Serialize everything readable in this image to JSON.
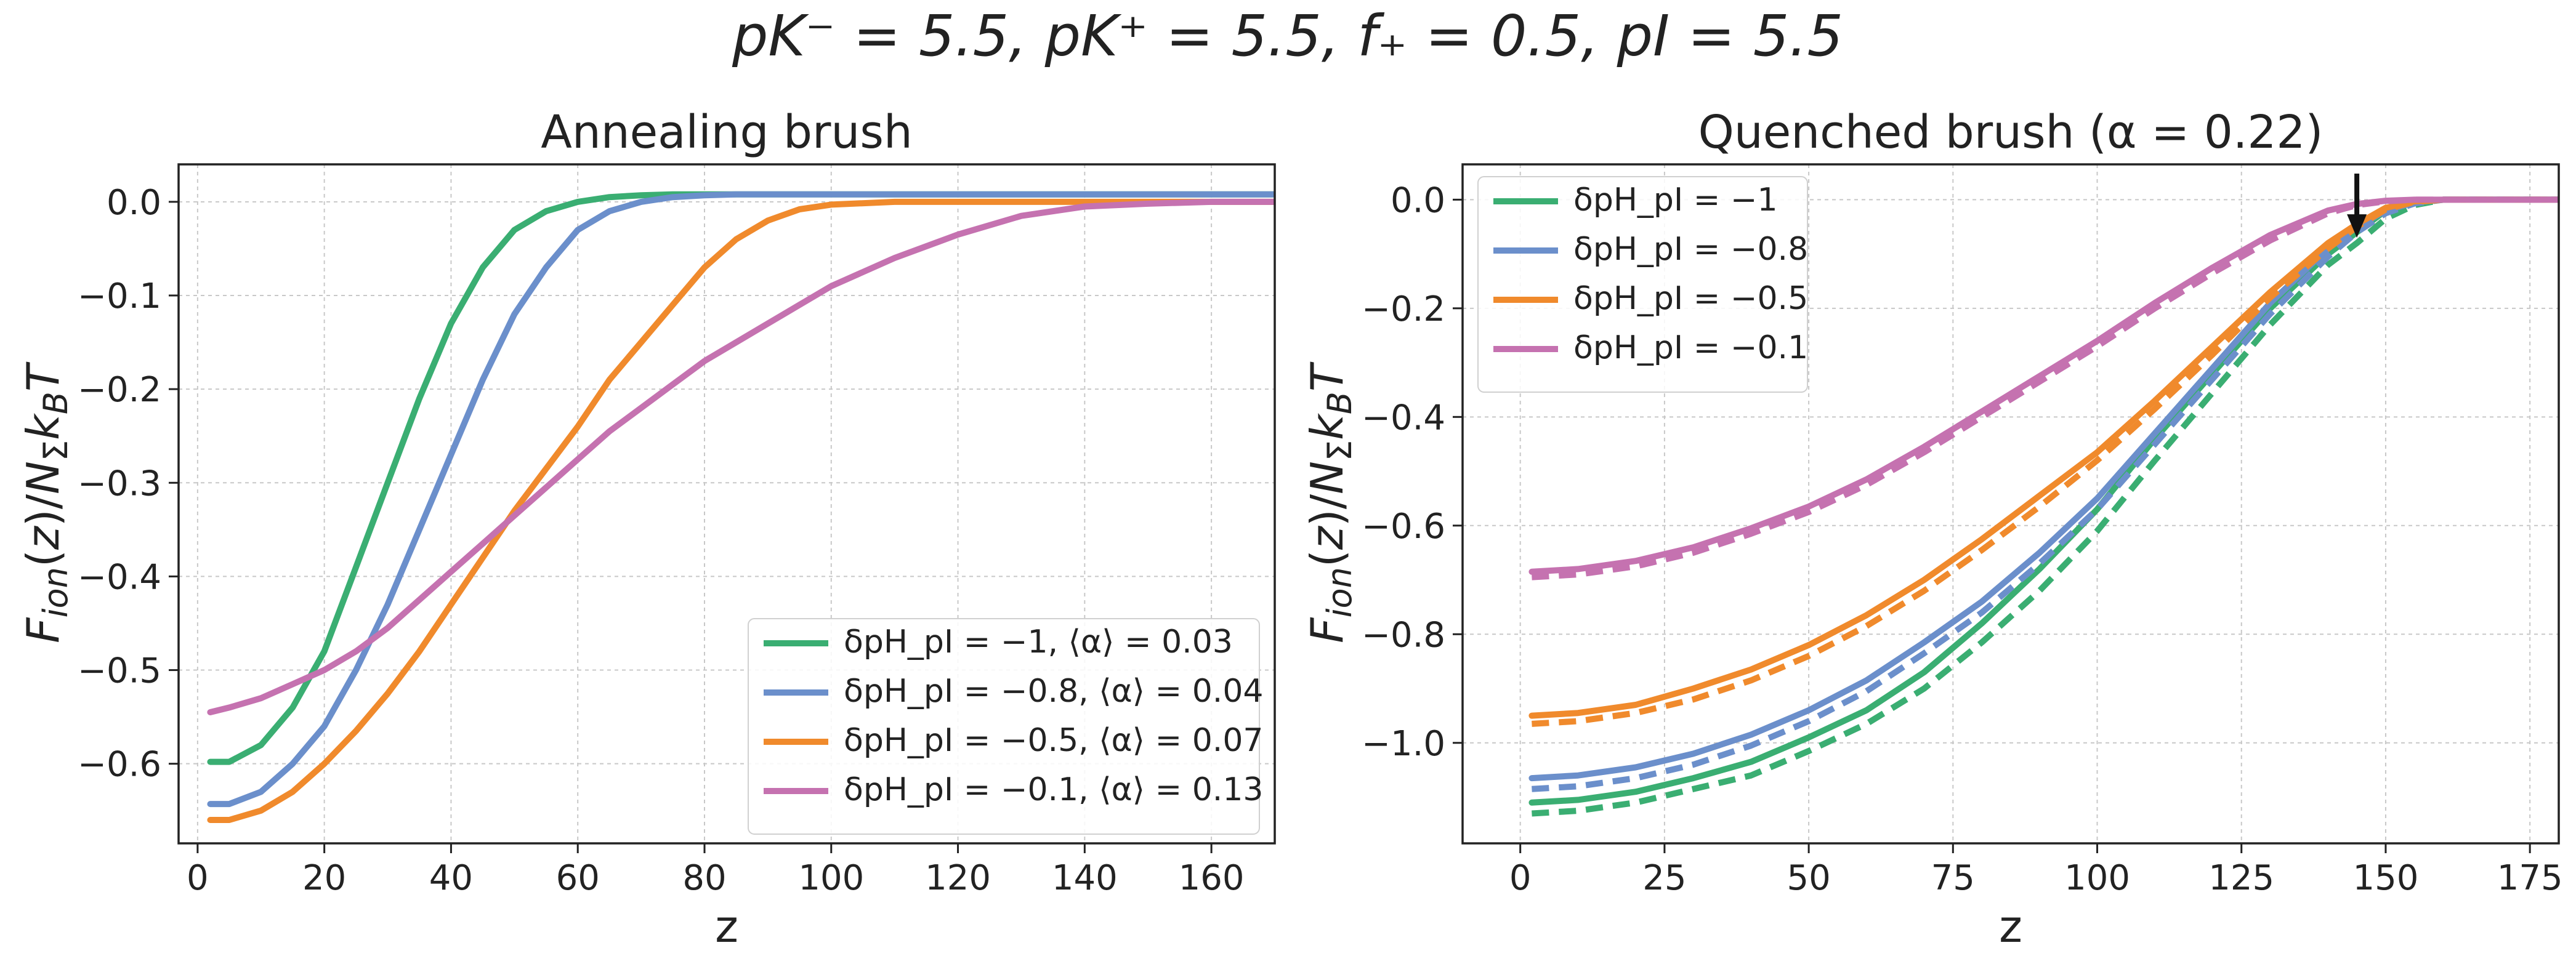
{
  "figure_title": "pK⁻ = 5.5, pK⁺ = 5.5, f₊ = 0.5, pI = 5.5",
  "chart_data": [
    {
      "type": "line",
      "title": "Annealing brush",
      "xlabel": "z",
      "ylabel": "F_ion(z)/N_Σ k_B T",
      "xlim": [
        -3,
        170
      ],
      "ylim": [
        -0.685,
        0.04
      ],
      "xticks": [
        0,
        20,
        40,
        60,
        80,
        100,
        120,
        140,
        160
      ],
      "yticks": [
        0.0,
        -0.1,
        -0.2,
        -0.3,
        -0.4,
        -0.5,
        -0.6
      ],
      "grid": true,
      "legend_position": "lower-right",
      "x": [
        2,
        5,
        10,
        15,
        20,
        25,
        30,
        35,
        40,
        45,
        50,
        55,
        60,
        65,
        70,
        75,
        80,
        85,
        90,
        95,
        100,
        110,
        120,
        130,
        140,
        150,
        160,
        170
      ],
      "series": [
        {
          "name": "δpH_pI = −1, ⟨α⟩ = 0.03",
          "color": "#3aae72",
          "style": "solid",
          "values": [
            -0.598,
            -0.598,
            -0.58,
            -0.54,
            -0.48,
            -0.39,
            -0.3,
            -0.21,
            -0.13,
            -0.07,
            -0.03,
            -0.01,
            0.0,
            0.005,
            0.007,
            0.008,
            0.008,
            0.008,
            0.008,
            0.008,
            0.008,
            0.008,
            0.008,
            0.008,
            0.008,
            0.008,
            0.008,
            0.008
          ]
        },
        {
          "name": "δpH_pI = −0.8, ⟨α⟩ = 0.04",
          "color": "#6b8fcb",
          "style": "solid",
          "values": [
            -0.643,
            -0.643,
            -0.63,
            -0.6,
            -0.56,
            -0.5,
            -0.43,
            -0.35,
            -0.27,
            -0.19,
            -0.12,
            -0.07,
            -0.03,
            -0.01,
            0.0,
            0.005,
            0.007,
            0.008,
            0.008,
            0.008,
            0.008,
            0.008,
            0.008,
            0.008,
            0.008,
            0.008,
            0.008,
            0.008
          ]
        },
        {
          "name": "δpH_pI = −0.5, ⟨α⟩ = 0.07",
          "color": "#f08a2c",
          "style": "solid",
          "values": [
            -0.66,
            -0.66,
            -0.65,
            -0.63,
            -0.6,
            -0.565,
            -0.525,
            -0.48,
            -0.43,
            -0.38,
            -0.33,
            -0.285,
            -0.24,
            -0.19,
            -0.15,
            -0.11,
            -0.07,
            -0.04,
            -0.02,
            -0.008,
            -0.003,
            0.0,
            0.0,
            0.0,
            0.0,
            0.0,
            0.0,
            0.0
          ]
        },
        {
          "name": "δpH_pI = −0.1, ⟨α⟩ = 0.13",
          "color": "#c572b0",
          "style": "solid",
          "values": [
            -0.545,
            -0.54,
            -0.53,
            -0.515,
            -0.5,
            -0.48,
            -0.455,
            -0.425,
            -0.395,
            -0.365,
            -0.335,
            -0.305,
            -0.275,
            -0.245,
            -0.22,
            -0.195,
            -0.17,
            -0.15,
            -0.13,
            -0.11,
            -0.09,
            -0.06,
            -0.035,
            -0.015,
            -0.005,
            -0.002,
            0.0,
            0.0
          ]
        }
      ]
    },
    {
      "type": "line",
      "title": "Quenched brush (α = 0.22)",
      "xlabel": "z",
      "ylabel": "F_ion(z)/N_Σ k_B T",
      "xlim": [
        -10,
        180
      ],
      "ylim": [
        -1.185,
        0.065
      ],
      "xticks": [
        0,
        25,
        50,
        75,
        100,
        125,
        150,
        175
      ],
      "yticks": [
        0.0,
        -0.2,
        -0.4,
        -0.6,
        -0.8,
        -1.0
      ],
      "grid": true,
      "legend_position": "upper-left",
      "note": "solid and dashed curves per condition; arrow marks z ≈ 145",
      "arrow_x": 145,
      "x": [
        2,
        10,
        20,
        30,
        40,
        50,
        60,
        70,
        80,
        90,
        100,
        110,
        120,
        130,
        140,
        145,
        150,
        155,
        160,
        165,
        170,
        180
      ],
      "series": [
        {
          "name": "δpH_pI = −1",
          "color": "#3aae72",
          "style": "solid",
          "values": [
            -1.11,
            -1.105,
            -1.09,
            -1.065,
            -1.035,
            -0.99,
            -0.94,
            -0.87,
            -0.78,
            -0.68,
            -0.57,
            -0.44,
            -0.32,
            -0.2,
            -0.1,
            -0.06,
            -0.02,
            -0.005,
            0.0,
            0.0,
            0.0,
            0.0
          ]
        },
        {
          "name": "δpH_pI = −1 (dashed)",
          "color": "#3aae72",
          "style": "dashed",
          "values": [
            -1.13,
            -1.125,
            -1.11,
            -1.085,
            -1.06,
            -1.015,
            -0.965,
            -0.9,
            -0.815,
            -0.72,
            -0.61,
            -0.48,
            -0.355,
            -0.23,
            -0.12,
            -0.08,
            -0.035,
            -0.01,
            0.0,
            0.0,
            0.0,
            0.0
          ]
        },
        {
          "name": "δpH_pI = −0.8",
          "color": "#6b8fcb",
          "style": "solid",
          "values": [
            -1.065,
            -1.06,
            -1.045,
            -1.02,
            -0.985,
            -0.94,
            -0.885,
            -0.815,
            -0.74,
            -0.65,
            -0.55,
            -0.43,
            -0.31,
            -0.19,
            -0.09,
            -0.05,
            -0.02,
            -0.005,
            0.0,
            0.0,
            0.0,
            0.0
          ]
        },
        {
          "name": "δpH_pI = −0.8 (dashed)",
          "color": "#6b8fcb",
          "style": "dashed",
          "values": [
            -1.085,
            -1.08,
            -1.065,
            -1.04,
            -1.005,
            -0.96,
            -0.905,
            -0.835,
            -0.76,
            -0.67,
            -0.57,
            -0.45,
            -0.33,
            -0.21,
            -0.105,
            -0.06,
            -0.025,
            -0.007,
            0.0,
            0.0,
            0.0,
            0.0
          ]
        },
        {
          "name": "δpH_pI = −0.5",
          "color": "#f08a2c",
          "style": "solid",
          "values": [
            -0.95,
            -0.945,
            -0.93,
            -0.9,
            -0.865,
            -0.82,
            -0.765,
            -0.7,
            -0.625,
            -0.545,
            -0.465,
            -0.37,
            -0.27,
            -0.17,
            -0.08,
            -0.045,
            -0.015,
            -0.003,
            0.0,
            0.0,
            0.0,
            0.0
          ]
        },
        {
          "name": "δpH_pI = −0.5 (dashed)",
          "color": "#f08a2c",
          "style": "dashed",
          "values": [
            -0.965,
            -0.96,
            -0.945,
            -0.92,
            -0.885,
            -0.84,
            -0.785,
            -0.72,
            -0.645,
            -0.565,
            -0.48,
            -0.385,
            -0.285,
            -0.18,
            -0.09,
            -0.05,
            -0.018,
            -0.004,
            0.0,
            0.0,
            0.0,
            0.0
          ]
        },
        {
          "name": "δpH_pI = −0.1",
          "color": "#c572b0",
          "style": "solid",
          "values": [
            -0.685,
            -0.68,
            -0.665,
            -0.64,
            -0.605,
            -0.565,
            -0.515,
            -0.455,
            -0.39,
            -0.325,
            -0.26,
            -0.19,
            -0.125,
            -0.065,
            -0.02,
            -0.008,
            -0.002,
            0.0,
            0.0,
            0.0,
            0.0,
            0.0
          ]
        },
        {
          "name": "δpH_pI = −0.1 (dashed)",
          "color": "#c572b0",
          "style": "dashed",
          "values": [
            -0.695,
            -0.69,
            -0.675,
            -0.65,
            -0.615,
            -0.575,
            -0.525,
            -0.465,
            -0.4,
            -0.335,
            -0.27,
            -0.2,
            -0.135,
            -0.075,
            -0.025,
            -0.01,
            -0.003,
            0.0,
            0.0,
            0.0,
            0.0,
            0.0
          ]
        }
      ]
    }
  ]
}
